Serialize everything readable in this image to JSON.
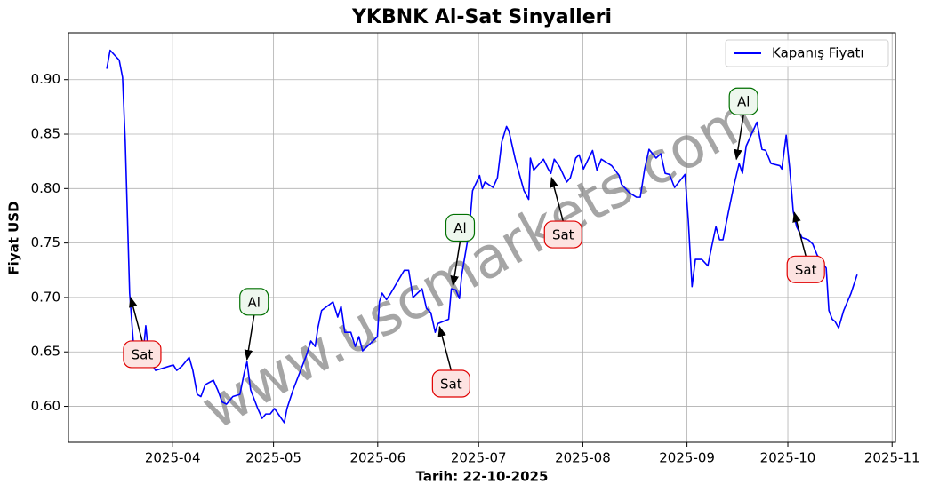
{
  "chart_data": {
    "type": "line",
    "title": "YKBNK Al-Sat Sinyalleri",
    "xlabel": "Tarih: 22-10-2025",
    "ylabel": "Fiyat USD",
    "grid": true,
    "legend": "upper right",
    "xlim": [
      60,
      306
    ],
    "ylim": [
      0.567,
      0.943
    ],
    "xticks": [
      {
        "value": 91,
        "label": "2025-04"
      },
      {
        "value": 121,
        "label": "2025-05"
      },
      {
        "value": 152,
        "label": "2025-06"
      },
      {
        "value": 182,
        "label": "2025-07"
      },
      {
        "value": 213,
        "label": "2025-08"
      },
      {
        "value": 244,
        "label": "2025-09"
      },
      {
        "value": 274,
        "label": "2025-10"
      },
      {
        "value": 305,
        "label": "2025-11"
      }
    ],
    "yticks": [
      {
        "value": 0.6,
        "label": "0.60"
      },
      {
        "value": 0.65,
        "label": "0.65"
      },
      {
        "value": 0.7,
        "label": "0.70"
      },
      {
        "value": 0.75,
        "label": "0.75"
      },
      {
        "value": 0.8,
        "label": "0.80"
      },
      {
        "value": 0.85,
        "label": "0.85"
      },
      {
        "value": 0.9,
        "label": "0.90"
      }
    ],
    "x": [
      71.4,
      72.4,
      75.1,
      76.1,
      76.9,
      78.2,
      79.3,
      80.6,
      81.9,
      83.0,
      84.0,
      85.9,
      91.2,
      92.2,
      93.8,
      95.9,
      97.0,
      98.3,
      99.4,
      100.7,
      103.1,
      104.4,
      105.7,
      107.0,
      108.9,
      111.0,
      112.3,
      113.1,
      114.2,
      116.3,
      117.6,
      118.7,
      120.0,
      121.3,
      124.2,
      125.0,
      126.8,
      130.8,
      132.1,
      133.4,
      134.2,
      135.3,
      138.7,
      140.1,
      141.1,
      142.2,
      144.0,
      145.3,
      146.4,
      147.5,
      150.6,
      151.9,
      152.5,
      153.3,
      154.6,
      155.9,
      159.9,
      161.2,
      162.5,
      165.2,
      166.5,
      167.8,
      169.1,
      169.9,
      173.1,
      173.9,
      175.2,
      176.3,
      177.0,
      179.2,
      180.2,
      182.3,
      183.1,
      183.9,
      186.3,
      187.6,
      188.9,
      190.3,
      191.0,
      192.9,
      195.5,
      196.9,
      197.4,
      198.4,
      201.3,
      202.7,
      203.5,
      204.5,
      206.1,
      208.2,
      209.3,
      210.9,
      211.9,
      213.2,
      215.9,
      217.2,
      218.5,
      221.6,
      223.8,
      224.5,
      226.9,
      229.0,
      230.1,
      231.4,
      232.7,
      234.8,
      236.2,
      237.5,
      238.8,
      240.3,
      243.4,
      244.4,
      245.5,
      246.5,
      248.4,
      250.2,
      251.5,
      252.6,
      253.7,
      254.7,
      256.3,
      257.9,
      259.5,
      260.5,
      261.6,
      264.8,
      266.3,
      267.4,
      269.0,
      271.6,
      272.2,
      273.5,
      274.5,
      275.6,
      276.6,
      278.2,
      280.1,
      281.4,
      282.7,
      285.4,
      286.2,
      287.2,
      288.0,
      289.1,
      290.6,
      292.8,
      294.6
    ],
    "series": [
      {
        "name": "Kapanış Fiyatı",
        "color": "#0000ff",
        "values": [
          0.91,
          0.927,
          0.918,
          0.902,
          0.843,
          0.704,
          0.659,
          0.639,
          0.638,
          0.674,
          0.643,
          0.633,
          0.638,
          0.633,
          0.637,
          0.645,
          0.633,
          0.611,
          0.609,
          0.62,
          0.624,
          0.615,
          0.604,
          0.602,
          0.609,
          0.611,
          0.631,
          0.641,
          0.615,
          0.598,
          0.589,
          0.593,
          0.593,
          0.598,
          0.585,
          0.598,
          0.615,
          0.647,
          0.66,
          0.655,
          0.672,
          0.688,
          0.696,
          0.682,
          0.692,
          0.668,
          0.668,
          0.655,
          0.664,
          0.651,
          0.66,
          0.664,
          0.696,
          0.704,
          0.698,
          0.704,
          0.725,
          0.725,
          0.7,
          0.708,
          0.69,
          0.686,
          0.668,
          0.676,
          0.68,
          0.708,
          0.707,
          0.699,
          0.721,
          0.761,
          0.798,
          0.812,
          0.8,
          0.806,
          0.801,
          0.81,
          0.843,
          0.857,
          0.853,
          0.827,
          0.798,
          0.79,
          0.828,
          0.817,
          0.827,
          0.818,
          0.814,
          0.827,
          0.82,
          0.806,
          0.81,
          0.828,
          0.831,
          0.818,
          0.835,
          0.817,
          0.827,
          0.821,
          0.812,
          0.804,
          0.796,
          0.792,
          0.792,
          0.818,
          0.836,
          0.828,
          0.832,
          0.814,
          0.813,
          0.801,
          0.813,
          0.77,
          0.71,
          0.735,
          0.735,
          0.729,
          0.749,
          0.765,
          0.753,
          0.753,
          0.778,
          0.802,
          0.823,
          0.814,
          0.839,
          0.861,
          0.836,
          0.835,
          0.823,
          0.821,
          0.818,
          0.849,
          0.82,
          0.779,
          0.765,
          0.755,
          0.753,
          0.749,
          0.739,
          0.727,
          0.688,
          0.68,
          0.678,
          0.672,
          0.688,
          0.704,
          0.721
        ]
      }
    ],
    "annotations": [
      {
        "text": "Sat",
        "x": 78.5,
        "y": 0.7,
        "position": "below",
        "color": "#e00000"
      },
      {
        "text": "Al",
        "x": 113.1,
        "y": 0.643,
        "position": "above",
        "color": "#007000"
      },
      {
        "text": "Sat",
        "x": 170.4,
        "y": 0.673,
        "position": "below",
        "color": "#e00000"
      },
      {
        "text": "Al",
        "x": 174.4,
        "y": 0.711,
        "position": "above",
        "color": "#007000"
      },
      {
        "text": "Sat",
        "x": 203.7,
        "y": 0.81,
        "position": "below",
        "color": "#e00000"
      },
      {
        "text": "Al",
        "x": 258.7,
        "y": 0.827,
        "position": "above",
        "color": "#007000"
      },
      {
        "text": "Sat",
        "x": 275.9,
        "y": 0.778,
        "position": "below",
        "color": "#e00000"
      }
    ],
    "watermark": "www.uscmarkets.com"
  }
}
